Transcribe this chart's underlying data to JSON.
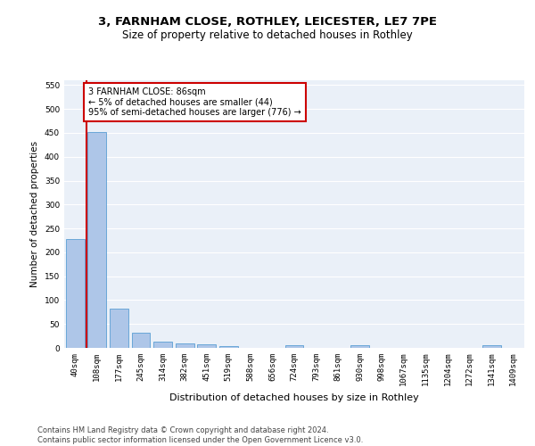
{
  "title": "3, FARNHAM CLOSE, ROTHLEY, LEICESTER, LE7 7PE",
  "subtitle": "Size of property relative to detached houses in Rothley",
  "xlabel": "Distribution of detached houses by size in Rothley",
  "ylabel": "Number of detached properties",
  "categories": [
    "40sqm",
    "108sqm",
    "177sqm",
    "245sqm",
    "314sqm",
    "382sqm",
    "451sqm",
    "519sqm",
    "588sqm",
    "656sqm",
    "724sqm",
    "793sqm",
    "861sqm",
    "930sqm",
    "998sqm",
    "1067sqm",
    "1135sqm",
    "1204sqm",
    "1272sqm",
    "1341sqm",
    "1409sqm"
  ],
  "values": [
    228,
    452,
    83,
    32,
    13,
    10,
    8,
    4,
    0,
    0,
    5,
    0,
    0,
    5,
    0,
    0,
    0,
    0,
    0,
    5,
    0
  ],
  "bar_color": "#aec6e8",
  "bar_edge_color": "#5a9fd4",
  "vline_color": "#cc0000",
  "annotation_text": "3 FARNHAM CLOSE: 86sqm\n← 5% of detached houses are smaller (44)\n95% of semi-detached houses are larger (776) →",
  "annotation_box_color": "#ffffff",
  "annotation_box_edge_color": "#cc0000",
  "ylim": [
    0,
    560
  ],
  "yticks": [
    0,
    50,
    100,
    150,
    200,
    250,
    300,
    350,
    400,
    450,
    500,
    550
  ],
  "background_color": "#eaf0f8",
  "footer_text": "Contains HM Land Registry data © Crown copyright and database right 2024.\nContains public sector information licensed under the Open Government Licence v3.0.",
  "title_fontsize": 9.5,
  "subtitle_fontsize": 8.5,
  "xlabel_fontsize": 8,
  "ylabel_fontsize": 7.5,
  "tick_fontsize": 6.5,
  "annotation_fontsize": 7,
  "footer_fontsize": 6
}
